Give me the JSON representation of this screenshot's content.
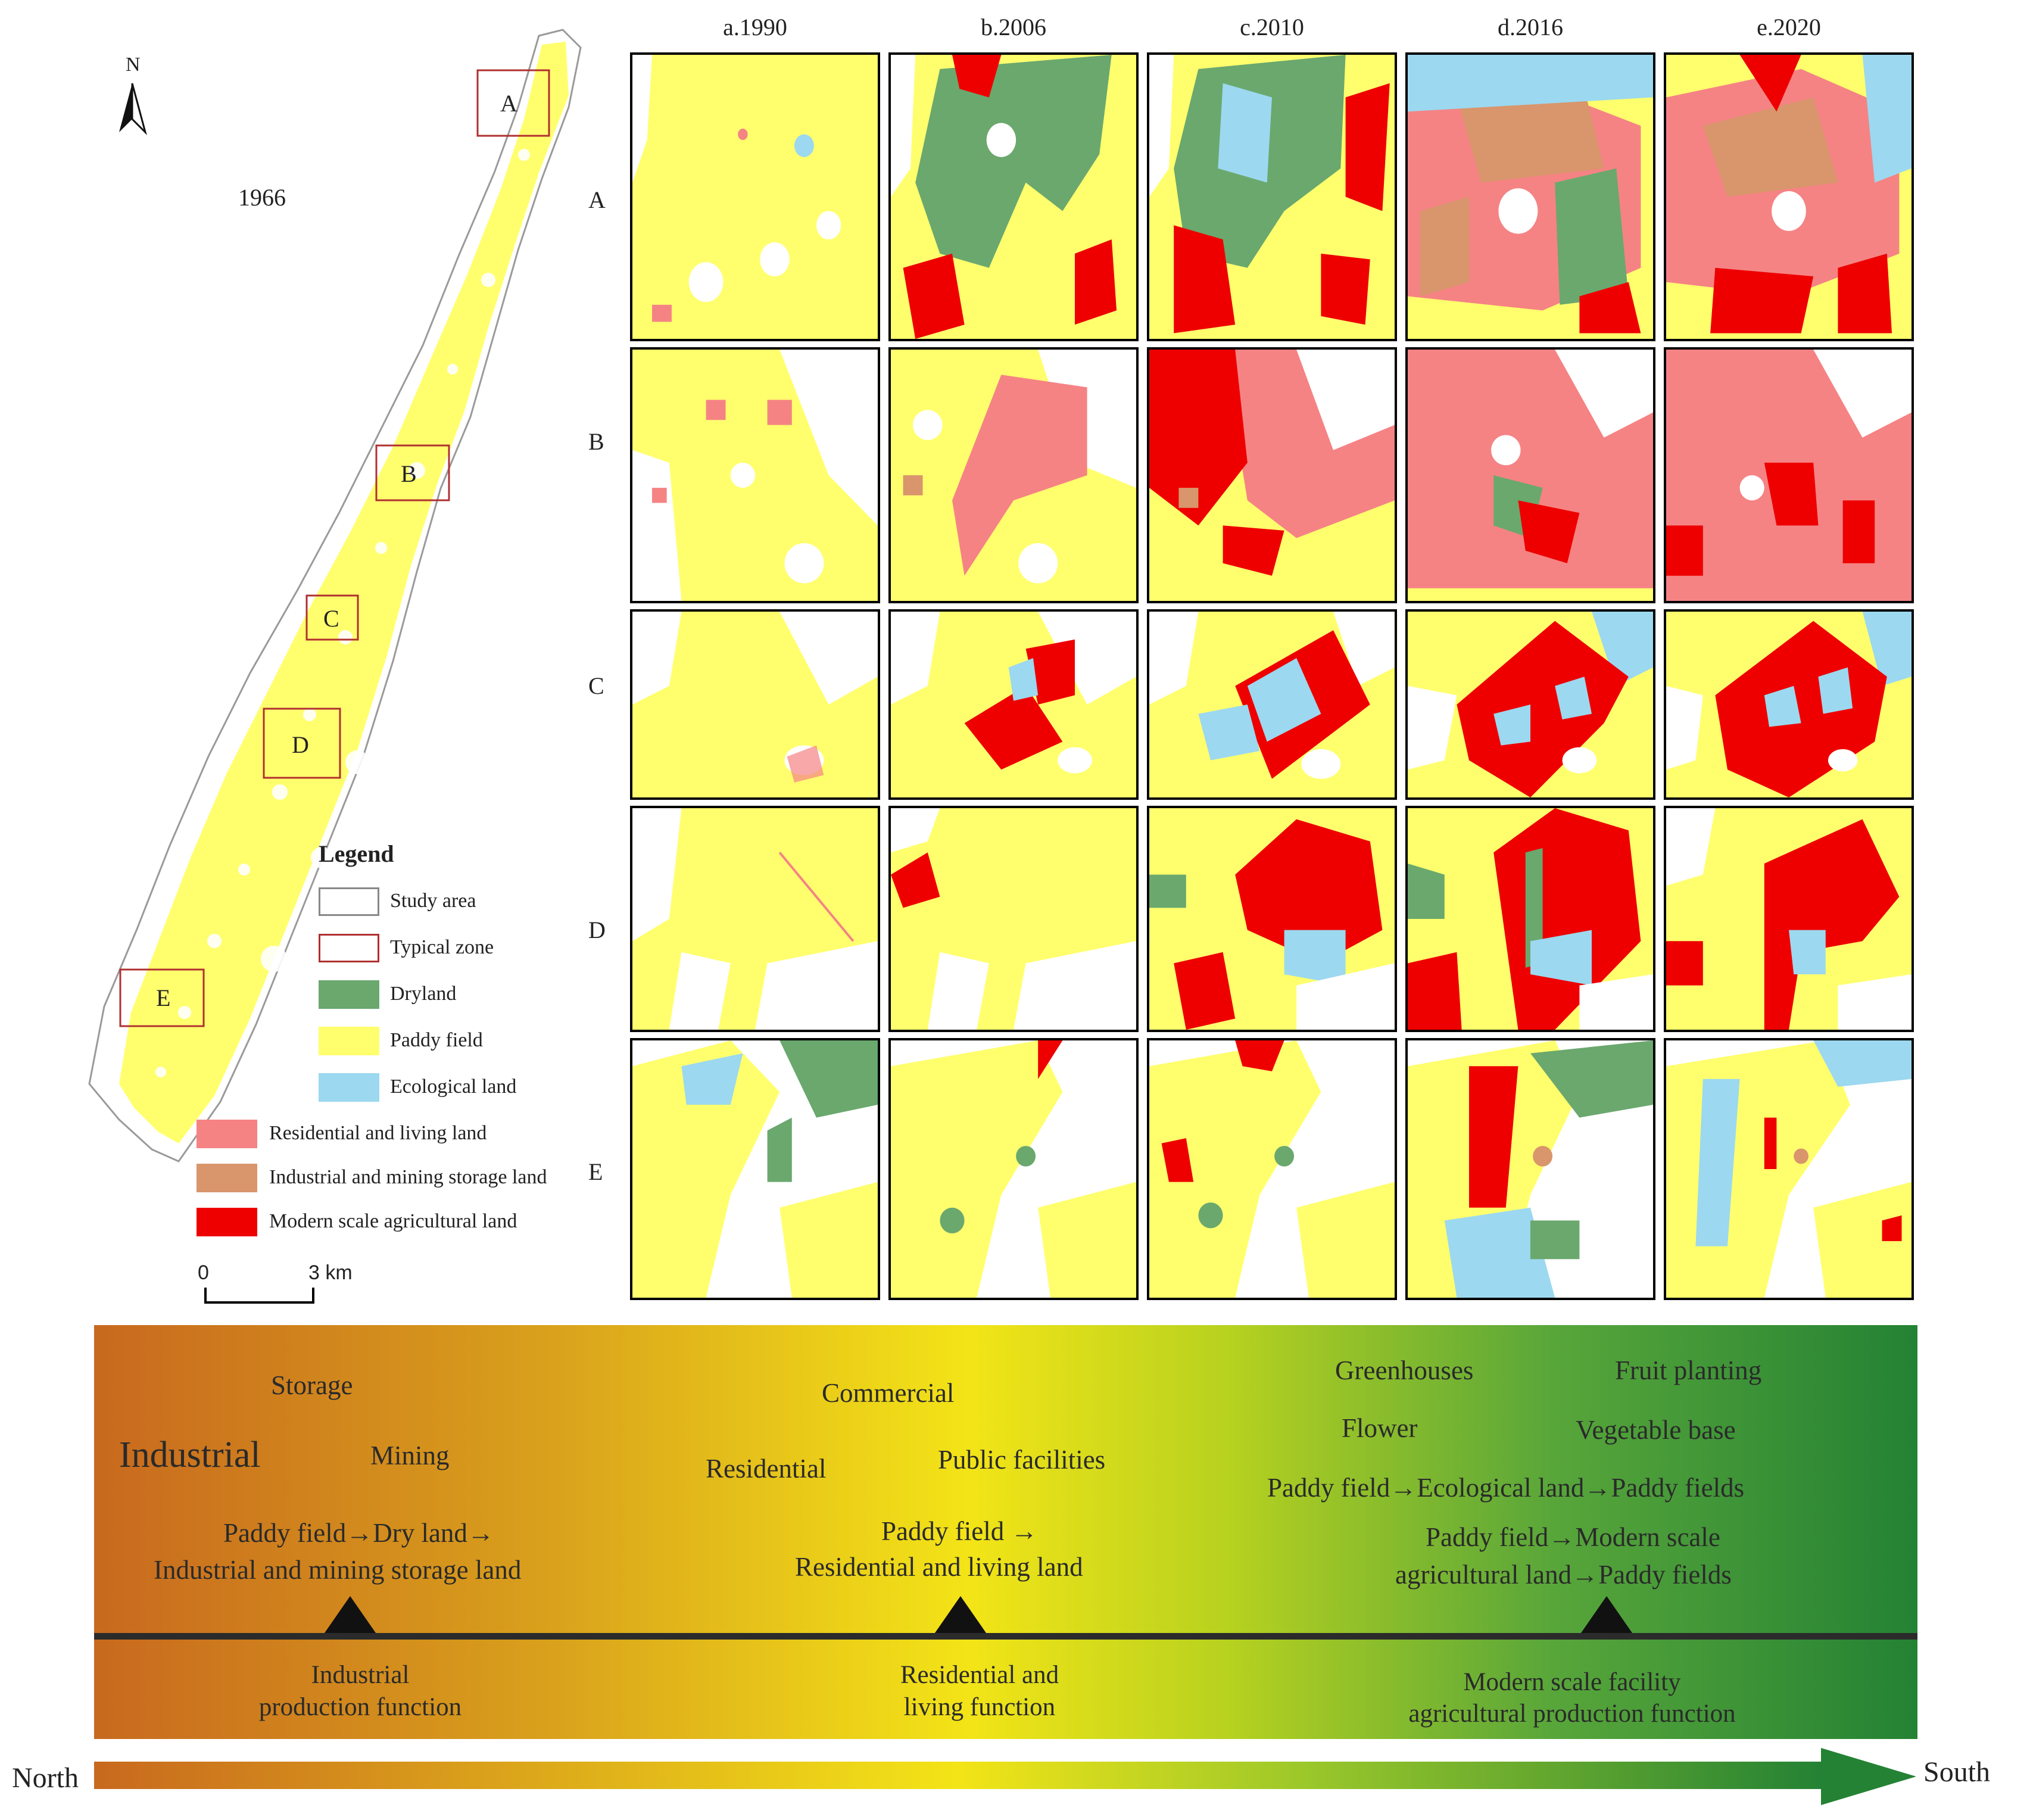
{
  "overview": {
    "year": "1966",
    "north_label": "N",
    "zones": [
      "A",
      "B",
      "C",
      "D",
      "E"
    ]
  },
  "columns": [
    "a.1990",
    "b.2006",
    "c.2010",
    "d.2016",
    "e.2020"
  ],
  "rows": [
    "A",
    "B",
    "C",
    "D",
    "E"
  ],
  "legend": {
    "title": "Legend",
    "items": [
      {
        "label": "Study area",
        "color": "#ffffff",
        "outline": "#888888"
      },
      {
        "label": "Typical zone",
        "color": "#ffffff",
        "outline": "#b03030"
      },
      {
        "label": "Dryland",
        "color": "#6aa86e"
      },
      {
        "label": "Paddy field",
        "color": "#ffff6e"
      },
      {
        "label": "Ecological land",
        "color": "#9cd8ef"
      },
      {
        "label": "Residential and living land",
        "color": "#f58384"
      },
      {
        "label": "Industrial and mining storage land",
        "color": "#d9956c"
      },
      {
        "label": "Modern scale agricultural land",
        "color": "#ee0000"
      }
    ]
  },
  "scalebar": {
    "start": "0",
    "end": "3 km"
  },
  "gradient_band": {
    "words": {
      "storage": "Storage",
      "industrial": "Industrial",
      "mining": "Mining",
      "commercial": "Commercial",
      "residential": "Residential",
      "public": "Public facilities",
      "greenhouses": "Greenhouses",
      "fruit": "Fruit planting",
      "flower": "Flower",
      "vegetable": "Vegetable base"
    },
    "flows": {
      "north_1": "Paddy field→Dry land→",
      "north_2": "Industrial and mining storage land",
      "mid_1": "Paddy field →",
      "mid_2": "Residential and living land",
      "south_a": "Paddy field→Ecological land→Paddy fields",
      "south_b1": "Paddy field→Modern scale",
      "south_b2": "agricultural land→Paddy fields"
    },
    "functions": {
      "f1_1": "Industrial",
      "f1_2": "production function",
      "f2_1": "Residential and",
      "f2_2": "living function",
      "f3_1": "Modern scale facility",
      "f3_2": "agricultural production function"
    }
  },
  "direction": {
    "north": "North",
    "south": "South"
  }
}
